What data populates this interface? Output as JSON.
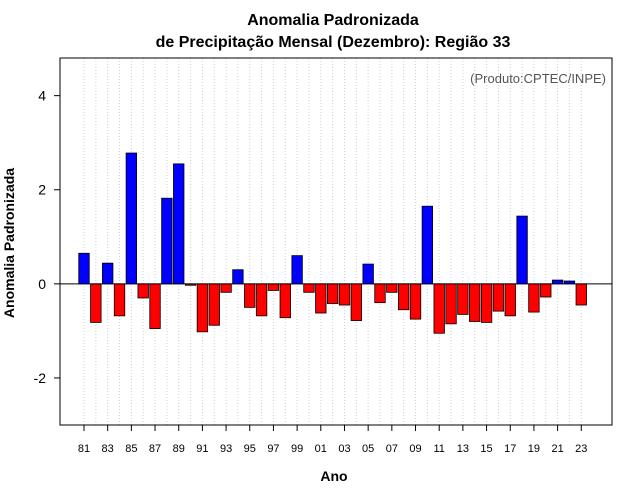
{
  "chart_data": {
    "type": "bar",
    "title": "Anomalia Padronizada",
    "subtitle": "de Precipitação Mensal (Dezembro): Região 33",
    "xlabel": "Ano",
    "ylabel": "Anomalia Padronizada",
    "annotation": "(Produto:CPTEC/INPE)",
    "ylim": [
      -3.0,
      4.8
    ],
    "yticks": [
      -2,
      0,
      2,
      4
    ],
    "grid": "vertical dotted",
    "positive_color": "#0000ff",
    "negative_color": "#ff0000",
    "categories": [
      "81",
      "82",
      "83",
      "84",
      "85",
      "86",
      "87",
      "88",
      "89",
      "90",
      "91",
      "92",
      "93",
      "94",
      "95",
      "96",
      "97",
      "98",
      "99",
      "00",
      "01",
      "02",
      "03",
      "04",
      "05",
      "06",
      "07",
      "08",
      "09",
      "10",
      "11",
      "12",
      "13",
      "14",
      "15",
      "16",
      "17",
      "18",
      "19",
      "20",
      "21",
      "22",
      "23"
    ],
    "tick_labels": [
      "81",
      "83",
      "85",
      "87",
      "89",
      "91",
      "93",
      "95",
      "97",
      "99",
      "01",
      "03",
      "05",
      "07",
      "09",
      "11",
      "13",
      "15",
      "17",
      "19",
      "21",
      "23"
    ],
    "values": [
      0.65,
      -0.82,
      0.44,
      -0.68,
      2.78,
      -0.3,
      -0.95,
      1.82,
      2.55,
      -0.03,
      -1.02,
      -0.88,
      -0.18,
      0.3,
      -0.5,
      -0.68,
      -0.14,
      -0.72,
      0.6,
      -0.18,
      -0.62,
      -0.42,
      -0.45,
      -0.78,
      0.42,
      -0.4,
      -0.18,
      -0.55,
      -0.75,
      1.65,
      -1.05,
      -0.85,
      -0.65,
      -0.8,
      -0.82,
      -0.58,
      -0.68,
      1.44,
      -0.6,
      -0.28,
      0.08,
      0.06,
      -0.45
    ]
  }
}
